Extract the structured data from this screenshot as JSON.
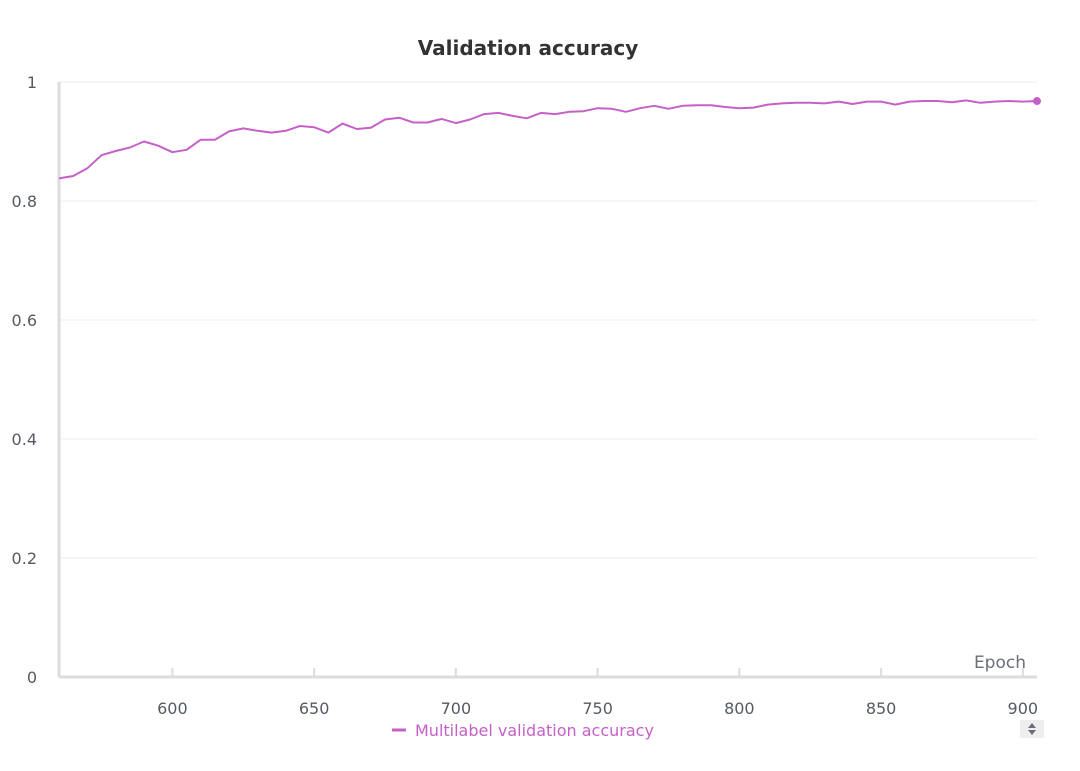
{
  "chart_data": {
    "type": "line",
    "title": "Validation accuracy",
    "xlabel": "Epoch",
    "ylabel": "",
    "xlim": [
      560,
      905
    ],
    "ylim": [
      0,
      1
    ],
    "xticks": [
      600,
      650,
      700,
      750,
      800,
      850,
      900
    ],
    "yticks": [
      0,
      0.2,
      0.4,
      0.6,
      0.8,
      1
    ],
    "ytick_labels": [
      "0",
      "0.2",
      "0.4",
      "0.6",
      "0.8",
      "1"
    ],
    "grid": "horizontal",
    "legend_position": "bottom",
    "series": [
      {
        "name": "Multilabel validation accuracy",
        "color": "#c660c9",
        "x": [
          560,
          565,
          570,
          575,
          580,
          585,
          590,
          595,
          600,
          605,
          610,
          615,
          620,
          625,
          630,
          635,
          640,
          645,
          650,
          655,
          660,
          665,
          670,
          675,
          680,
          685,
          690,
          695,
          700,
          705,
          710,
          715,
          720,
          725,
          730,
          735,
          740,
          745,
          750,
          755,
          760,
          765,
          770,
          775,
          780,
          785,
          790,
          795,
          800,
          805,
          810,
          815,
          820,
          825,
          830,
          835,
          840,
          845,
          850,
          855,
          860,
          865,
          870,
          875,
          880,
          885,
          890,
          895,
          900,
          905
        ],
        "y": [
          0.838,
          0.842,
          0.855,
          0.877,
          0.884,
          0.89,
          0.9,
          0.893,
          0.882,
          0.886,
          0.903,
          0.903,
          0.917,
          0.922,
          0.918,
          0.915,
          0.918,
          0.926,
          0.924,
          0.915,
          0.93,
          0.921,
          0.923,
          0.937,
          0.94,
          0.932,
          0.932,
          0.938,
          0.931,
          0.937,
          0.946,
          0.948,
          0.943,
          0.939,
          0.948,
          0.946,
          0.95,
          0.951,
          0.956,
          0.955,
          0.95,
          0.956,
          0.96,
          0.955,
          0.96,
          0.961,
          0.961,
          0.958,
          0.956,
          0.957,
          0.962,
          0.964,
          0.965,
          0.965,
          0.964,
          0.967,
          0.963,
          0.967,
          0.967,
          0.962,
          0.967,
          0.968,
          0.968,
          0.966,
          0.969,
          0.965,
          0.967,
          0.968,
          0.967,
          0.968
        ]
      }
    ]
  }
}
